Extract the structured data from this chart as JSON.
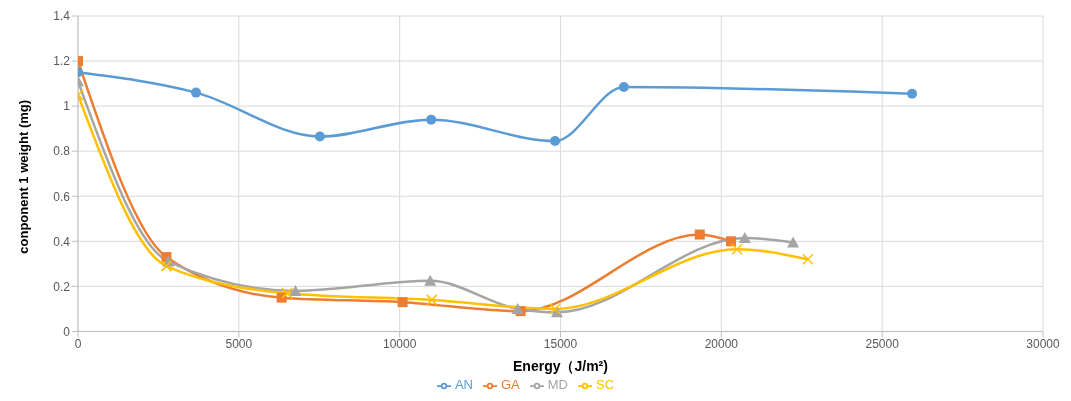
{
  "chart_data": {
    "type": "line",
    "xlabel": "Energy（J/m²)",
    "ylabel": "conponent 1 weight (mg)",
    "xlim": [
      0,
      30000
    ],
    "xticks": [
      0,
      5000,
      10000,
      15000,
      20000,
      25000,
      30000
    ],
    "ylim": [
      0,
      1.4
    ],
    "yticks": [
      0,
      0.2,
      0.4,
      0.6,
      0.8,
      1,
      1.2,
      1.4
    ],
    "grid": true,
    "legend": "bottom",
    "line_style": "solid",
    "series": [
      {
        "name": "AN",
        "color": "#5b9bd5",
        "marker": "circle",
        "x": [
          0,
          3670,
          7520,
          10980,
          14830,
          16970,
          25930
        ],
        "values": [
          1.15,
          1.06,
          0.865,
          0.94,
          0.845,
          1.085,
          1.055
        ]
      },
      {
        "name": "GA",
        "color": "#ed7d31",
        "marker": "square",
        "x": [
          0,
          2750,
          6330,
          10090,
          13760,
          19330,
          20300
        ],
        "values": [
          1.2,
          0.33,
          0.15,
          0.13,
          0.09,
          0.43,
          0.4
        ]
      },
      {
        "name": "MD",
        "color": "#a5a5a5",
        "marker": "triangle",
        "x": [
          0,
          2810,
          6760,
          10950,
          13670,
          14890,
          20730,
          22230
        ],
        "values": [
          1.11,
          0.31,
          0.18,
          0.225,
          0.1,
          0.085,
          0.415,
          0.395
        ]
      },
      {
        "name": "SC",
        "color": "#ffc000",
        "marker": "cross",
        "x": [
          0,
          2750,
          6500,
          11000,
          14830,
          20490,
          22690
        ],
        "values": [
          1.05,
          0.29,
          0.17,
          0.14,
          0.1,
          0.365,
          0.32
        ]
      }
    ]
  }
}
